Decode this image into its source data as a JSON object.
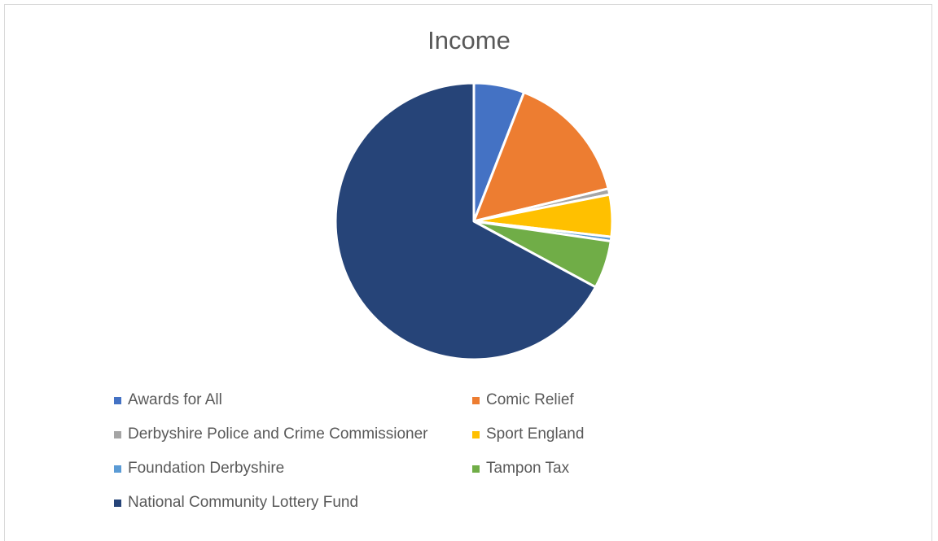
{
  "chart_data": {
    "type": "pie",
    "title": "Income",
    "categories": [
      "Awards for All",
      "Comic Relief",
      "Derbyshire Police and Crime Commissioner",
      "Sport England",
      "Foundation Derbyshire",
      "Tampon Tax",
      "National Community Lottery Fund"
    ],
    "values": [
      5.9,
      15.3,
      0.7,
      4.9,
      0.5,
      5.6,
      67.1
    ],
    "colors": [
      "#4472c4",
      "#ed7d31",
      "#a5a5a5",
      "#ffc000",
      "#5b9bd5",
      "#70ad47",
      "#264478"
    ],
    "legend_position": "bottom",
    "slice_border_color": "#ffffff"
  }
}
